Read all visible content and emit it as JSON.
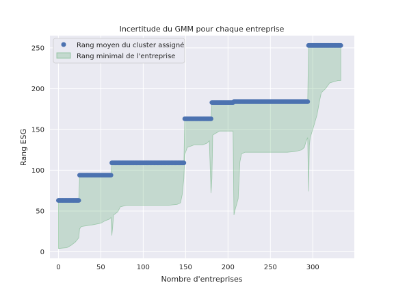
{
  "chart_data": {
    "type": "scatter",
    "title": "Incertitude du GMM pour chaque entreprise",
    "xlabel": "Nombre d'entreprises",
    "ylabel": "Rang ESG",
    "xlim": [
      -10,
      349
    ],
    "ylim": [
      -8,
      265
    ],
    "xticks": [
      0,
      50,
      100,
      150,
      200,
      250,
      300
    ],
    "yticks": [
      0,
      50,
      100,
      150,
      200,
      250
    ],
    "grid": true,
    "legend_position": "top-left",
    "series": [
      {
        "name": "Rang moyen du cluster assigné",
        "kind": "scatter",
        "color": "#4c72b0",
        "segments": [
          {
            "x_start": 0,
            "x_end": 24,
            "y": 63
          },
          {
            "x_start": 25,
            "x_end": 62,
            "y": 94
          },
          {
            "x_start": 63,
            "x_end": 148,
            "y": 109
          },
          {
            "x_start": 149,
            "x_end": 180,
            "y": 163
          },
          {
            "x_start": 181,
            "x_end": 206,
            "y": 183
          },
          {
            "x_start": 207,
            "x_end": 294,
            "y": 184
          },
          {
            "x_start": 295,
            "x_end": 333,
            "y": 253
          }
        ]
      },
      {
        "name": "Rang minimal de l'entreprise",
        "kind": "fill_between",
        "color": "#55a868",
        "alpha": 0.25,
        "x": [
          0,
          10,
          15,
          20,
          24,
          25,
          27,
          40,
          50,
          55,
          60,
          62,
          63,
          64,
          65,
          70,
          73,
          80,
          90,
          100,
          110,
          120,
          130,
          140,
          144,
          146,
          148,
          149,
          150,
          152,
          160,
          170,
          175,
          178,
          180,
          181,
          182,
          185,
          190,
          200,
          206,
          207,
          208,
          212,
          214,
          216,
          220,
          230,
          250,
          270,
          280,
          287,
          290,
          292,
          294,
          295,
          296,
          297,
          300,
          305,
          308,
          310,
          315,
          320,
          330,
          333
        ],
        "y": [
          4,
          5,
          8,
          12,
          17,
          28,
          31,
          33,
          35,
          38,
          40,
          42,
          20,
          30,
          45,
          49,
          55,
          57,
          57,
          57,
          57,
          57,
          57,
          58,
          60,
          70,
          90,
          119,
          122,
          128,
          131,
          131,
          133,
          136,
          72,
          90,
          143,
          145,
          148,
          148,
          148,
          45,
          50,
          65,
          110,
          120,
          122,
          122,
          122,
          122,
          123,
          125,
          128,
          135,
          140,
          74,
          130,
          140,
          150,
          168,
          185,
          195,
          200,
          207,
          210,
          210
        ]
      }
    ]
  }
}
